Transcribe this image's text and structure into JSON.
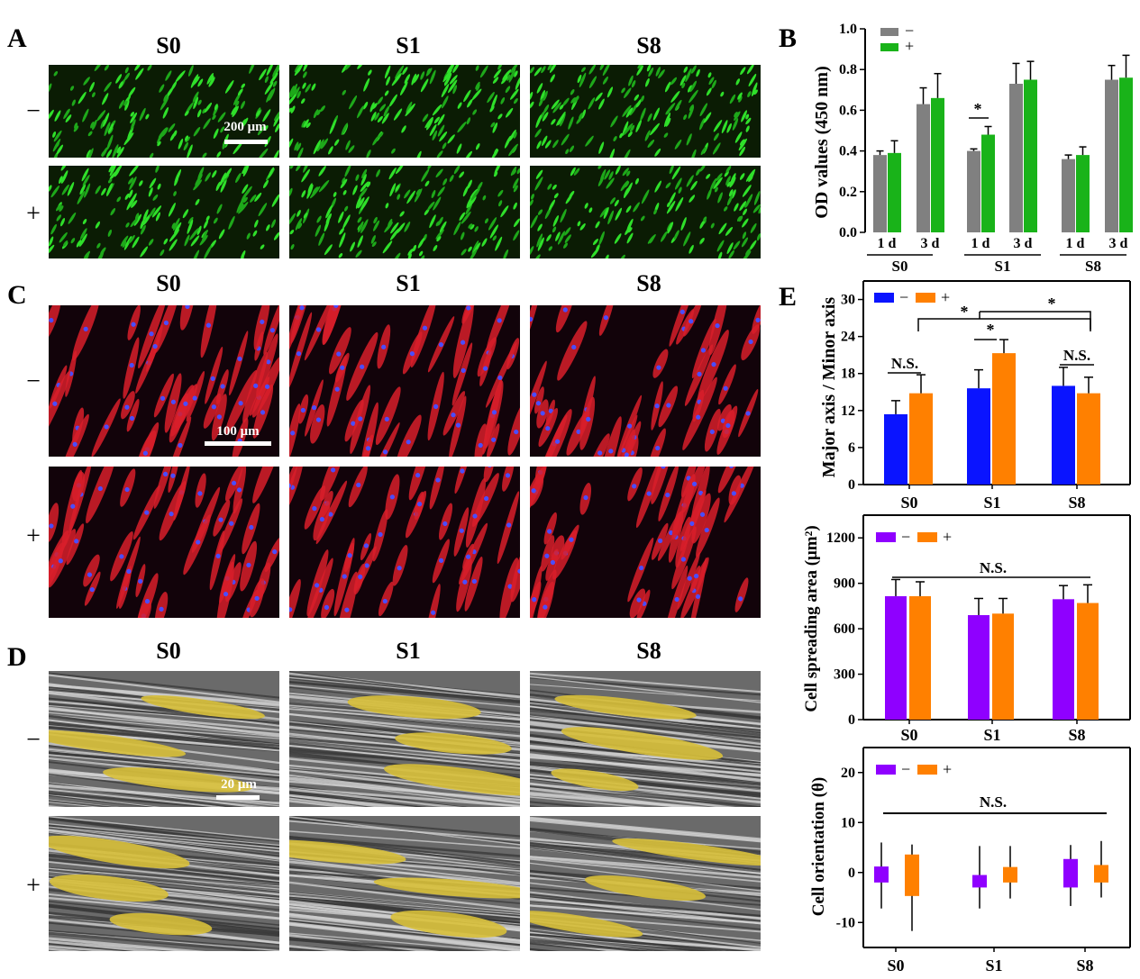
{
  "panels": {
    "A": {
      "letter": "A",
      "columns": [
        "S0",
        "S1",
        "S8"
      ],
      "rows": [
        "−",
        "+"
      ],
      "scale_bar": "200 μm",
      "colors": {
        "background": "#0d1f04",
        "cells": "#2ed12a"
      }
    },
    "B": {
      "letter": "B",
      "legend": [
        "−",
        "+"
      ],
      "groups": [
        "S0",
        "S1",
        "S8"
      ],
      "subgroups": [
        "1 d",
        "3 d"
      ],
      "significance": "*"
    },
    "C": {
      "letter": "C",
      "columns": [
        "S0",
        "S1",
        "S8"
      ],
      "rows": [
        "−",
        "+"
      ],
      "scale_bar": "100 μm",
      "colors": {
        "background": "#150407",
        "cells": "#e0202a",
        "nuclei": "#3b3bff"
      }
    },
    "D": {
      "letter": "D",
      "columns": [
        "S0",
        "S1",
        "S8"
      ],
      "rows": [
        "−",
        "+"
      ],
      "scale_bar": "20 μm",
      "colors": {
        "background": "#5a5a5a",
        "cells": "#d9c23a"
      }
    },
    "E": {
      "letter": "E"
    }
  },
  "chart_data": [
    {
      "id": "B",
      "type": "bar",
      "ylabel": "OD values (450 nm)",
      "ylim": [
        0,
        1.0
      ],
      "yticks": [
        "0.0",
        "0.2",
        "0.4",
        "0.6",
        "0.8",
        "1.0"
      ],
      "categories": [
        "1 d",
        "3 d",
        "1 d",
        "3 d",
        "1 d",
        "3 d"
      ],
      "groups": [
        "S0",
        "S1",
        "S8"
      ],
      "series": [
        {
          "name": "−",
          "color": "#808080",
          "values": [
            0.38,
            0.63,
            0.4,
            0.73,
            0.36,
            0.75
          ],
          "errors": [
            0.02,
            0.08,
            0.01,
            0.1,
            0.02,
            0.07
          ]
        },
        {
          "name": "+",
          "color": "#19b319",
          "values": [
            0.39,
            0.66,
            0.48,
            0.75,
            0.38,
            0.76
          ],
          "errors": [
            0.06,
            0.12,
            0.04,
            0.09,
            0.04,
            0.11
          ]
        }
      ],
      "annotations": [
        "*"
      ]
    },
    {
      "id": "E1",
      "type": "bar",
      "ylabel": "Major axis / Minor axis",
      "ylim": [
        0,
        33
      ],
      "yticks": [
        "0",
        "6",
        "12",
        "18",
        "24",
        "30"
      ],
      "categories": [
        "S0",
        "S1",
        "S8"
      ],
      "series": [
        {
          "name": "−",
          "color": "#0a14ff",
          "values": [
            11.4,
            15.6,
            16.0
          ],
          "errors": [
            2.2,
            3.0,
            3.0
          ]
        },
        {
          "name": "+",
          "color": "#ff8000",
          "values": [
            14.8,
            21.3,
            14.8
          ],
          "errors": [
            3.0,
            2.2,
            2.6
          ]
        }
      ],
      "annotations": [
        "N.S.",
        "*",
        "*",
        "*",
        "N.S."
      ]
    },
    {
      "id": "E2",
      "type": "bar",
      "ylabel": "Cell spreading area (μm²)",
      "ylim": [
        0,
        1350
      ],
      "yticks": [
        "0",
        "300",
        "600",
        "900",
        "1200"
      ],
      "categories": [
        "S0",
        "S1",
        "S8"
      ],
      "series": [
        {
          "name": "−",
          "color": "#8f00ff",
          "values": [
            815,
            690,
            795
          ],
          "errors": [
            110,
            110,
            90
          ]
        },
        {
          "name": "+",
          "color": "#ff8000",
          "values": [
            815,
            700,
            770
          ],
          "errors": [
            95,
            100,
            120
          ]
        }
      ],
      "annotations": [
        "N.S."
      ]
    },
    {
      "id": "E3",
      "type": "bar",
      "ylabel": "Cell orientation  (θ)",
      "ylim": [
        -15,
        25
      ],
      "yticks": [
        "-10",
        "0",
        "10",
        "20"
      ],
      "categories": [
        "S0",
        "S1",
        "S8"
      ],
      "series": [
        {
          "name": "−",
          "color": "#8f00ff",
          "low": [
            -2.0,
            -3.0,
            -3.0
          ],
          "high": [
            1.2,
            -0.5,
            2.7
          ],
          "whisker_low": [
            -7.2,
            -7.2,
            -6.7
          ],
          "whisker_high": [
            6.0,
            5.3,
            5.5
          ]
        },
        {
          "name": "+",
          "color": "#ff8000",
          "low": [
            -4.7,
            -2.0,
            -2.0
          ],
          "high": [
            3.6,
            1.1,
            1.5
          ],
          "whisker_low": [
            -11.7,
            -5.2,
            -5.0
          ],
          "whisker_high": [
            5.6,
            5.3,
            6.3
          ]
        }
      ],
      "annotations": [
        "N.S."
      ]
    }
  ]
}
